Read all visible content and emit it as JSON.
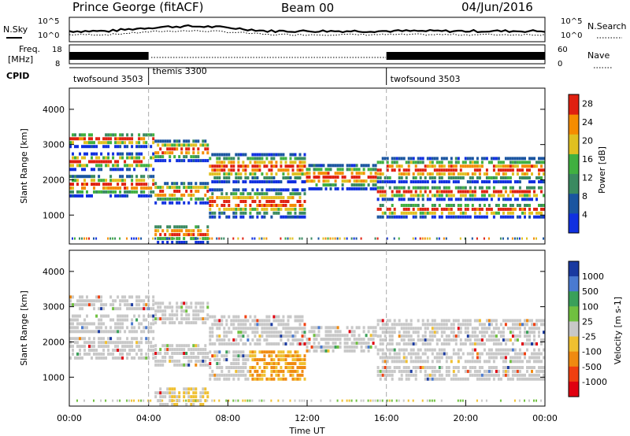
{
  "header": {
    "station": "Prince George (fitACF)",
    "beam": "Beam 00",
    "date": "04/Jun/2016"
  },
  "panel_labels": {
    "nsky": "N.Sky",
    "nsearch": "N.Search",
    "freq_line1": "Freq.",
    "freq_line2": "[MHz]",
    "nave": "Nave",
    "cpid": "CPID",
    "nsky_top": "10^5",
    "nsky_bottom": "10^0",
    "freq_top": "18",
    "freq_bottom": "8",
    "nave_top": "60",
    "nave_bottom": "0"
  },
  "cpid_segments": [
    {
      "name": "twofsound 3503",
      "start_h": 0,
      "end_h": 4
    },
    {
      "name": "themis 3300",
      "start_h": 4,
      "end_h": 16
    },
    {
      "name": "twofsound 3503",
      "start_h": 16,
      "end_h": 24
    }
  ],
  "chart_data": [
    {
      "type": "heatmap",
      "ylabel": "Slant Range [km]",
      "xlim_hours": [
        0,
        24
      ],
      "ylim": [
        180,
        4600
      ],
      "yticks": [
        1000,
        2000,
        3000,
        4000
      ],
      "colorbar_label": "Power [dB]",
      "colorbar_ticks": [
        4,
        8,
        12,
        16,
        20,
        24,
        28
      ],
      "colorbar_range": [
        0,
        30
      ],
      "colors": [
        "#1030e0",
        "#1a55a0",
        "#3a8a60",
        "#40b040",
        "#e0c020",
        "#f58c00",
        "#e02010"
      ]
    },
    {
      "type": "heatmap",
      "ylabel": "Slant Range [km]",
      "xlabel": "Time UT",
      "xlim_hours": [
        0,
        24
      ],
      "xticks": [
        "00:00",
        "04:00",
        "08:00",
        "12:00",
        "16:00",
        "20:00",
        "00:00"
      ],
      "ylim": [
        180,
        4600
      ],
      "yticks": [
        1000,
        2000,
        3000,
        4000
      ],
      "colorbar_label": "Velocity [m s-1]",
      "colorbar_ticks": [
        "1000",
        "500",
        "100",
        "25",
        "-25",
        "-100",
        "-500",
        "-1000"
      ],
      "colors": [
        "#1a3aa0",
        "#4a7ad0",
        "#3aa05a",
        "#70c040",
        "#c8c8c8",
        "#f0c030",
        "#f08a10",
        "#f04010",
        "#e00010"
      ]
    }
  ]
}
